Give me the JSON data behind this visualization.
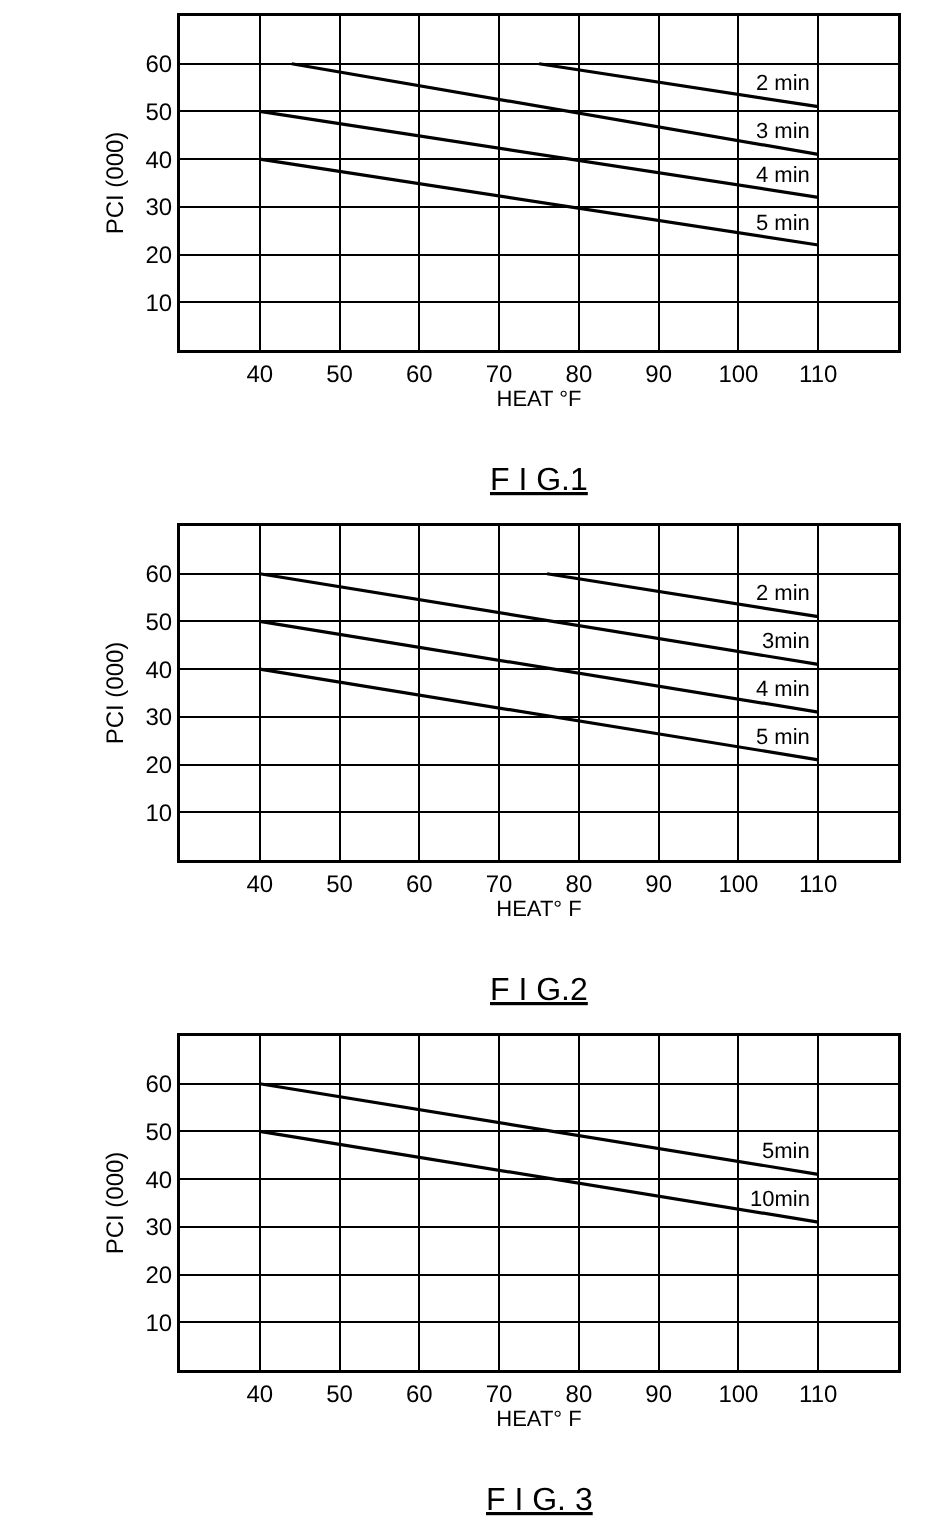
{
  "chart_data": [
    {
      "type": "line",
      "title": "F I G.1",
      "xlabel": "HEAT °F",
      "ylabel": "PCI (000)",
      "xlim": [
        30,
        120
      ],
      "ylim": [
        0,
        70
      ],
      "xticks": [
        40,
        50,
        60,
        70,
        80,
        90,
        100,
        110
      ],
      "yticks": [
        10,
        20,
        30,
        40,
        50,
        60
      ],
      "grid": true,
      "legend": false,
      "line_style": "solid",
      "series": [
        {
          "name": "2 min",
          "color": "#000000",
          "x": [
            75,
            110
          ],
          "values": [
            60,
            51
          ]
        },
        {
          "name": "3 min",
          "color": "#000000",
          "x": [
            44,
            110
          ],
          "values": [
            60,
            41
          ]
        },
        {
          "name": "4 min",
          "color": "#000000",
          "x": [
            40,
            110
          ],
          "values": [
            50,
            32
          ]
        },
        {
          "name": "5 min",
          "color": "#000000",
          "x": [
            40,
            110
          ],
          "values": [
            40,
            22
          ]
        }
      ]
    },
    {
      "type": "line",
      "title": "F I G.2",
      "xlabel": "HEAT° F",
      "ylabel": "PCI (000)",
      "xlim": [
        30,
        120
      ],
      "ylim": [
        0,
        70
      ],
      "xticks": [
        40,
        50,
        60,
        70,
        80,
        90,
        100,
        110
      ],
      "yticks": [
        10,
        20,
        30,
        40,
        50,
        60
      ],
      "grid": true,
      "legend": false,
      "line_style": "solid",
      "series": [
        {
          "name": "2 min",
          "color": "#000000",
          "x": [
            76,
            110
          ],
          "values": [
            60,
            51
          ]
        },
        {
          "name": "3min",
          "color": "#000000",
          "x": [
            40,
            110
          ],
          "values": [
            60,
            41
          ]
        },
        {
          "name": "4 min",
          "color": "#000000",
          "x": [
            40,
            110
          ],
          "values": [
            50,
            31
          ]
        },
        {
          "name": "5 min",
          "color": "#000000",
          "x": [
            40,
            110
          ],
          "values": [
            40,
            21
          ]
        }
      ]
    },
    {
      "type": "line",
      "title": "F I G. 3",
      "xlabel": "HEAT° F",
      "ylabel": "PCI (000)",
      "xlim": [
        30,
        120
      ],
      "ylim": [
        0,
        70
      ],
      "xticks": [
        40,
        50,
        60,
        70,
        80,
        90,
        100,
        110
      ],
      "yticks": [
        10,
        20,
        30,
        40,
        50,
        60
      ],
      "grid": true,
      "legend": false,
      "line_style": "solid",
      "series": [
        {
          "name": "5min",
          "color": "#000000",
          "x": [
            40,
            110
          ],
          "values": [
            60,
            41
          ]
        },
        {
          "name": "10min",
          "color": "#000000",
          "x": [
            40,
            110
          ],
          "values": [
            50,
            31
          ]
        }
      ]
    }
  ]
}
